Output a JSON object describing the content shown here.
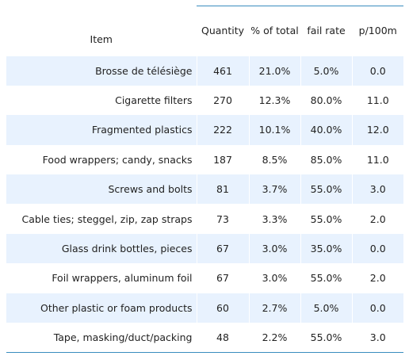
{
  "table": {
    "headers": {
      "item": "Item",
      "quantity": "Quantity",
      "pct_total": "% of total",
      "fail_rate": "fail rate",
      "p100m": "p/100m"
    },
    "rows": [
      {
        "item": "Brosse de télésiège",
        "quantity": "461",
        "pct_total": "21.0%",
        "fail_rate": "5.0%",
        "p100m": "0.0"
      },
      {
        "item": "Cigarette filters",
        "quantity": "270",
        "pct_total": "12.3%",
        "fail_rate": "80.0%",
        "p100m": "11.0"
      },
      {
        "item": "Fragmented plastics",
        "quantity": "222",
        "pct_total": "10.1%",
        "fail_rate": "40.0%",
        "p100m": "12.0"
      },
      {
        "item": "Food wrappers; candy, snacks",
        "quantity": "187",
        "pct_total": "8.5%",
        "fail_rate": "85.0%",
        "p100m": "11.0"
      },
      {
        "item": "Screws and bolts",
        "quantity": "81",
        "pct_total": "3.7%",
        "fail_rate": "55.0%",
        "p100m": "3.0"
      },
      {
        "item": "Cable ties; steggel, zip, zap straps",
        "quantity": "73",
        "pct_total": "3.3%",
        "fail_rate": "55.0%",
        "p100m": "2.0"
      },
      {
        "item": "Glass drink bottles, pieces",
        "quantity": "67",
        "pct_total": "3.0%",
        "fail_rate": "35.0%",
        "p100m": "0.0"
      },
      {
        "item": "Foil wrappers, aluminum foil",
        "quantity": "67",
        "pct_total": "3.0%",
        "fail_rate": "55.0%",
        "p100m": "2.0"
      },
      {
        "item": "Other plastic or foam products",
        "quantity": "60",
        "pct_total": "2.7%",
        "fail_rate": "5.0%",
        "p100m": "0.0"
      },
      {
        "item": "Tape, masking/duct/packing",
        "quantity": "48",
        "pct_total": "2.2%",
        "fail_rate": "55.0%",
        "p100m": "3.0"
      }
    ]
  }
}
